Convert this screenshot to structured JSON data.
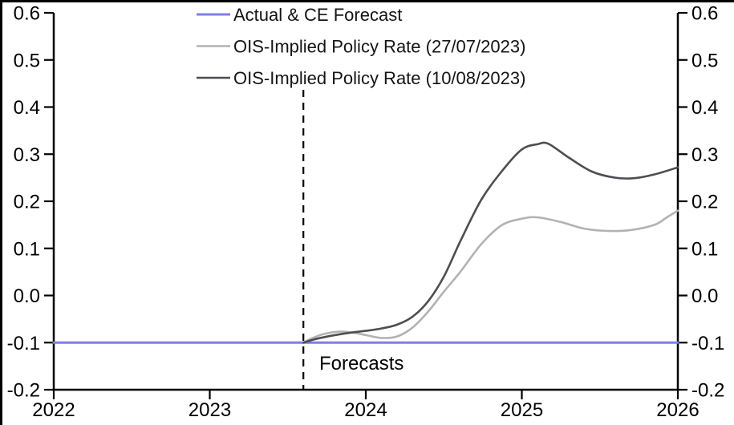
{
  "chart": {
    "background": "#ffffff",
    "frame_color": "#000000",
    "axis_color": "#000000",
    "text_color": "#000000"
  },
  "chart_data": {
    "type": "line",
    "title": "",
    "xlabel": "",
    "ylabel": "",
    "xlim": [
      2022,
      2026
    ],
    "ylim": [
      -0.2,
      0.6
    ],
    "x_ticks": [
      2022,
      2023,
      2024,
      2025,
      2026
    ],
    "x_tick_labels": [
      "2022",
      "2023",
      "2024",
      "2025",
      "2026"
    ],
    "y_ticks": [
      0.6,
      0.5,
      0.4,
      0.3,
      0.2,
      0.1,
      0.0,
      -0.1,
      -0.2
    ],
    "y_tick_labels": [
      "0.6",
      "0.5",
      "0.4",
      "0.3",
      "0.2",
      "0.1",
      "0.0",
      "-0.1",
      "-0.2"
    ],
    "dual_y_axis": true,
    "grid": false,
    "legend_position": "top-left-inside",
    "forecast_line": {
      "x": 2023.6,
      "label": "Forecasts",
      "style": "dashed",
      "color": "#000000"
    },
    "series": [
      {
        "name": "Actual & CE Forecast",
        "slug": "actual-ce-forecast",
        "color": "#7f7fe8",
        "width": 3,
        "points": [
          [
            2022.0,
            -0.1
          ],
          [
            2026.0,
            -0.1
          ]
        ]
      },
      {
        "name": "OIS-Implied Policy Rate (27/07/2023)",
        "slug": "ois-implied-2023-07-27",
        "color": "#b2b2b2",
        "width": 2.6,
        "points": [
          [
            2023.6,
            -0.1
          ],
          [
            2023.66,
            -0.09
          ],
          [
            2023.74,
            -0.081
          ],
          [
            2023.82,
            -0.077
          ],
          [
            2023.9,
            -0.078
          ],
          [
            2024.0,
            -0.084
          ],
          [
            2024.1,
            -0.09
          ],
          [
            2024.2,
            -0.087
          ],
          [
            2024.3,
            -0.068
          ],
          [
            2024.4,
            -0.034
          ],
          [
            2024.5,
            0.008
          ],
          [
            2024.61,
            0.052
          ],
          [
            2024.74,
            0.109
          ],
          [
            2024.87,
            0.149
          ],
          [
            2025.0,
            0.163
          ],
          [
            2025.1,
            0.166
          ],
          [
            2025.25,
            0.156
          ],
          [
            2025.4,
            0.142
          ],
          [
            2025.55,
            0.137
          ],
          [
            2025.7,
            0.139
          ],
          [
            2025.85,
            0.15
          ],
          [
            2025.93,
            0.166
          ],
          [
            2026.0,
            0.18
          ]
        ]
      },
      {
        "name": "OIS-Implied Policy Rate (10/08/2023)",
        "slug": "ois-implied-2023-08-10",
        "color": "#4d4d52",
        "width": 2.6,
        "points": [
          [
            2023.6,
            -0.1
          ],
          [
            2023.66,
            -0.094
          ],
          [
            2023.74,
            -0.088
          ],
          [
            2023.82,
            -0.083
          ],
          [
            2023.9,
            -0.079
          ],
          [
            2024.0,
            -0.075
          ],
          [
            2024.1,
            -0.07
          ],
          [
            2024.2,
            -0.062
          ],
          [
            2024.3,
            -0.045
          ],
          [
            2024.4,
            -0.012
          ],
          [
            2024.5,
            0.04
          ],
          [
            2024.61,
            0.118
          ],
          [
            2024.74,
            0.203
          ],
          [
            2024.87,
            0.263
          ],
          [
            2025.0,
            0.31
          ],
          [
            2025.1,
            0.321
          ],
          [
            2025.17,
            0.322
          ],
          [
            2025.3,
            0.293
          ],
          [
            2025.45,
            0.263
          ],
          [
            2025.6,
            0.25
          ],
          [
            2025.72,
            0.249
          ],
          [
            2025.85,
            0.257
          ],
          [
            2026.0,
            0.272
          ]
        ]
      }
    ]
  }
}
